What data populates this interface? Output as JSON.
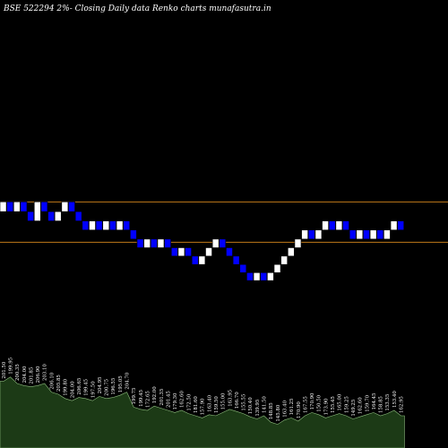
{
  "chart_data": {
    "type": "renko",
    "title": "BSE 522294  2%-  Closing Daily data  Renko  charts munafasutra.in",
    "colors": {
      "background": "#000000",
      "up_brick": "#ffffff",
      "down_brick": "#0000ff",
      "brick_outline": "#000000",
      "reference_line": "#c07a1a",
      "volume_area": "#1c3a16",
      "volume_outline": "#8fbf7f",
      "text": "#ffffff"
    },
    "reference_levels": [
      204.85,
      187.55
    ],
    "y_range": [
      130,
      280
    ],
    "bricks": [
      {
        "dir": "up",
        "close": 204.9
      },
      {
        "dir": "down",
        "close": 200.7
      },
      {
        "dir": "up",
        "close": 204.9
      },
      {
        "dir": "down",
        "close": 200.7
      },
      {
        "dir": "down",
        "close": 196.7
      },
      {
        "dir": "up",
        "close": 204.9
      },
      {
        "dir": "down",
        "close": 200.7
      },
      {
        "dir": "down",
        "close": 196.7
      },
      {
        "dir": "up",
        "close": 200.7
      },
      {
        "dir": "up",
        "close": 204.9
      },
      {
        "dir": "down",
        "close": 200.7
      },
      {
        "dir": "down",
        "close": 196.7
      },
      {
        "dir": "down",
        "close": 192.8
      },
      {
        "dir": "up",
        "close": 196.7
      },
      {
        "dir": "down",
        "close": 192.8
      },
      {
        "dir": "up",
        "close": 196.7
      },
      {
        "dir": "down",
        "close": 192.8
      },
      {
        "dir": "up",
        "close": 196.7
      },
      {
        "dir": "down",
        "close": 192.8
      },
      {
        "dir": "down",
        "close": 188.9
      },
      {
        "dir": "down",
        "close": 185.2
      },
      {
        "dir": "up",
        "close": 188.9
      },
      {
        "dir": "down",
        "close": 185.2
      },
      {
        "dir": "up",
        "close": 188.9
      },
      {
        "dir": "down",
        "close": 185.2
      },
      {
        "dir": "down",
        "close": 181.6
      },
      {
        "dir": "up",
        "close": 185.2
      },
      {
        "dir": "down",
        "close": 181.6
      },
      {
        "dir": "down",
        "close": 178.0
      },
      {
        "dir": "up",
        "close": 181.6
      },
      {
        "dir": "up",
        "close": 185.2
      },
      {
        "dir": "up",
        "close": 188.9
      },
      {
        "dir": "down",
        "close": 185.2
      },
      {
        "dir": "down",
        "close": 181.6
      },
      {
        "dir": "down",
        "close": 178.0
      },
      {
        "dir": "down",
        "close": 174.5
      },
      {
        "dir": "down",
        "close": 171.1
      },
      {
        "dir": "up",
        "close": 174.5
      },
      {
        "dir": "down",
        "close": 171.1
      },
      {
        "dir": "up",
        "close": 174.5
      },
      {
        "dir": "up",
        "close": 178.0
      },
      {
        "dir": "up",
        "close": 181.6
      },
      {
        "dir": "up",
        "close": 185.2
      },
      {
        "dir": "up",
        "close": 188.9
      },
      {
        "dir": "up",
        "close": 192.8
      },
      {
        "dir": "down",
        "close": 188.9
      },
      {
        "dir": "up",
        "close": 192.8
      },
      {
        "dir": "up",
        "close": 196.7
      },
      {
        "dir": "down",
        "close": 192.8
      },
      {
        "dir": "up",
        "close": 196.7
      },
      {
        "dir": "down",
        "close": 192.8
      },
      {
        "dir": "down",
        "close": 188.9
      },
      {
        "dir": "up",
        "close": 192.8
      },
      {
        "dir": "down",
        "close": 188.9
      },
      {
        "dir": "up",
        "close": 192.8
      },
      {
        "dir": "down",
        "close": 188.9
      },
      {
        "dir": "up",
        "close": 192.8
      },
      {
        "dir": "up",
        "close": 196.7
      },
      {
        "dir": "down",
        "close": 192.8
      }
    ],
    "price_labels": [
      "201.50",
      "199.95",
      "200.35",
      "204.00",
      "201.85",
      "206.90",
      "203.10",
      "206.10",
      "205.85",
      "199.80",
      "204.00",
      "206.65",
      "199.45",
      "197.50",
      "204.95",
      "200.75",
      "196.55",
      "195.05",
      "204.70",
      "199.75",
      "199.45",
      "172.65",
      "192.00",
      "201.35",
      "201.45",
      "179.30",
      "162.60",
      "172.50",
      "181.60",
      "157.90",
      "163.40",
      "159.50",
      "155.00",
      "163.95",
      "166.70",
      "155.55",
      "150.40",
      "139.95",
      "141.50",
      "148.85",
      "145.80",
      "163.40",
      "161.25",
      "170.90",
      "167.55",
      "170.90",
      "150.50",
      "173.90",
      "155.45",
      "165.00",
      "159.25",
      "149.25",
      "162.60",
      "159.70",
      "164.45",
      "158.85",
      "153.35",
      "153.40",
      "162.95"
    ],
    "volume": [
      0.62,
      0.66,
      0.6,
      0.58,
      0.57,
      0.58,
      0.6,
      0.52,
      0.5,
      0.46,
      0.44,
      0.47,
      0.46,
      0.44,
      0.48,
      0.46,
      0.47,
      0.49,
      0.52,
      0.38,
      0.36,
      0.35,
      0.39,
      0.37,
      0.35,
      0.33,
      0.35,
      0.32,
      0.3,
      0.28,
      0.31,
      0.3,
      0.33,
      0.36,
      0.34,
      0.32,
      0.29,
      0.27,
      0.3,
      0.24,
      0.22,
      0.26,
      0.28,
      0.25,
      0.3,
      0.33,
      0.31,
      0.28,
      0.3,
      0.32,
      0.3,
      0.27,
      0.29,
      0.31,
      0.33,
      0.3,
      0.32,
      0.35,
      0.3
    ]
  }
}
